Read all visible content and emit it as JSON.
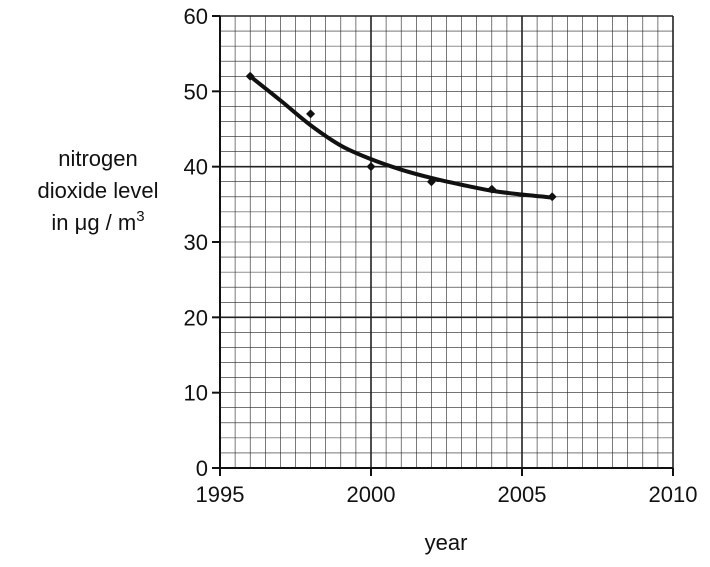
{
  "chart_data": {
    "type": "line",
    "xlabel": "year",
    "ylabel_lines": [
      "nitrogen",
      "dioxide level",
      "in μg / m"
    ],
    "ylabel_superscript": "3",
    "xlim": [
      1995,
      2010
    ],
    "ylim": [
      0,
      60
    ],
    "x_ticks": [
      1995,
      2000,
      2005,
      2010
    ],
    "y_ticks": [
      0,
      10,
      20,
      30,
      40,
      50,
      60
    ],
    "grid": true,
    "legend": "none",
    "series": [
      {
        "x": [
          1996,
          1998,
          2000,
          2002,
          2004,
          2006
        ],
        "values": [
          52,
          47,
          40,
          38,
          37,
          36
        ]
      }
    ],
    "best_fit_curve": {
      "x": [
        1996,
        1997,
        1998,
        1999,
        2000,
        2001,
        2002,
        2003,
        2004,
        2005,
        2006
      ],
      "values": [
        52,
        48.8,
        45.5,
        42.8,
        41,
        39.6,
        38.5,
        37.6,
        36.8,
        36.3,
        35.9
      ]
    },
    "colors": {
      "grid": "#222222",
      "line": "#111111",
      "background": "#ffffff"
    }
  }
}
